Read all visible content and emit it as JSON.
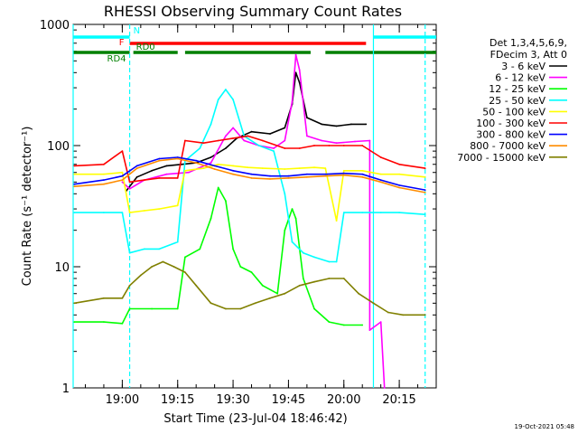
{
  "chart_data": {
    "type": "line",
    "title": "RHESSI Observing Summary Count Rates",
    "xlabel": "Start Time (23-Jul-04 18:46:42)",
    "ylabel": "Count Rate (s⁻¹ detector⁻¹)",
    "y_scale": "log",
    "ylim": [
      1,
      1000
    ],
    "xlim": [
      "18:46:42",
      "20:25:00"
    ],
    "x_ticks": [
      "19:00",
      "19:15",
      "19:30",
      "19:45",
      "20:00",
      "20:15"
    ],
    "y_ticks": [
      "1",
      "10",
      "100",
      "1000"
    ],
    "grid": false,
    "legend": {
      "placement": "right",
      "header": [
        "Det 1,3,4,5,6,9,",
        "FDecim 3, Att 0"
      ]
    },
    "series": [
      {
        "name": "3 - 6 keV",
        "color": "#000000",
        "points": [
          [
            "19:01",
            42
          ],
          [
            "19:04",
            55
          ],
          [
            "19:08",
            62
          ],
          [
            "19:12",
            68
          ],
          [
            "19:16",
            70
          ],
          [
            "19:20",
            72
          ],
          [
            "19:24",
            80
          ],
          [
            "19:28",
            95
          ],
          [
            "19:31",
            115
          ],
          [
            "19:35",
            130
          ],
          [
            "19:40",
            125
          ],
          [
            "19:44",
            140
          ],
          [
            "19:46",
            220
          ],
          [
            "19:47",
            400
          ],
          [
            "19:48",
            330
          ],
          [
            "19:50",
            170
          ],
          [
            "19:54",
            150
          ],
          [
            "19:58",
            145
          ],
          [
            "20:02",
            150
          ],
          [
            "20:06",
            150
          ]
        ]
      },
      {
        "name": "6 - 12 keV",
        "color": "#ff00ff",
        "points": [
          [
            "19:00",
            50
          ],
          [
            "19:02",
            44
          ],
          [
            "19:06",
            52
          ],
          [
            "19:12",
            58
          ],
          [
            "19:18",
            60
          ],
          [
            "19:24",
            72
          ],
          [
            "19:28",
            120
          ],
          [
            "19:30",
            140
          ],
          [
            "19:33",
            110
          ],
          [
            "19:37",
            100
          ],
          [
            "19:41",
            95
          ],
          [
            "19:44",
            110
          ],
          [
            "19:46",
            230
          ],
          [
            "19:47",
            560
          ],
          [
            "19:48",
            420
          ],
          [
            "19:50",
            120
          ],
          [
            "19:54",
            110
          ],
          [
            "19:58",
            105
          ],
          [
            "20:03",
            108
          ],
          [
            "20:07",
            110
          ],
          [
            "20:07",
            3
          ],
          [
            "20:10",
            3.5
          ],
          [
            "20:11",
            1
          ]
        ]
      },
      {
        "name": "12 - 25 keV",
        "color": "#00ff00",
        "points": [
          [
            "18:47",
            3.5
          ],
          [
            "18:55",
            3.5
          ],
          [
            "19:00",
            3.4
          ],
          [
            "19:02",
            4.5
          ],
          [
            "19:08",
            4.5
          ],
          [
            "19:15",
            4.5
          ],
          [
            "19:17",
            12
          ],
          [
            "19:21",
            14
          ],
          [
            "19:24",
            25
          ],
          [
            "19:26",
            45
          ],
          [
            "19:28",
            35
          ],
          [
            "19:30",
            14
          ],
          [
            "19:32",
            10
          ],
          [
            "19:35",
            9
          ],
          [
            "19:38",
            7
          ],
          [
            "19:42",
            6
          ],
          [
            "19:44",
            20
          ],
          [
            "19:46",
            30
          ],
          [
            "19:47",
            25
          ],
          [
            "19:49",
            8
          ],
          [
            "19:52",
            4.5
          ],
          [
            "19:56",
            3.5
          ],
          [
            "20:00",
            3.3
          ],
          [
            "20:05",
            3.3
          ]
        ]
      },
      {
        "name": "25 - 50 keV",
        "color": "#00ffff",
        "points": [
          [
            "18:47",
            28
          ],
          [
            "18:55",
            28
          ],
          [
            "19:00",
            28
          ],
          [
            "19:02",
            13
          ],
          [
            "19:06",
            14
          ],
          [
            "19:10",
            14
          ],
          [
            "19:15",
            16
          ],
          [
            "19:17",
            75
          ],
          [
            "19:21",
            95
          ],
          [
            "19:24",
            150
          ],
          [
            "19:26",
            240
          ],
          [
            "19:28",
            290
          ],
          [
            "19:30",
            240
          ],
          [
            "19:33",
            120
          ],
          [
            "19:37",
            100
          ],
          [
            "19:41",
            90
          ],
          [
            "19:44",
            40
          ],
          [
            "19:46",
            16
          ],
          [
            "19:49",
            13
          ],
          [
            "19:52",
            12
          ],
          [
            "19:56",
            11
          ],
          [
            "19:58",
            11
          ],
          [
            "20:00",
            28
          ],
          [
            "20:05",
            28
          ],
          [
            "20:10",
            28
          ],
          [
            "20:15",
            28
          ],
          [
            "20:22",
            27
          ]
        ]
      },
      {
        "name": "50 - 100 keV",
        "color": "#ffff00",
        "points": [
          [
            "18:47",
            58
          ],
          [
            "18:55",
            58
          ],
          [
            "19:00",
            60
          ],
          [
            "19:02",
            28
          ],
          [
            "19:06",
            29
          ],
          [
            "19:10",
            30
          ],
          [
            "19:15",
            32
          ],
          [
            "19:17",
            62
          ],
          [
            "19:22",
            65
          ],
          [
            "19:26",
            70
          ],
          [
            "19:30",
            68
          ],
          [
            "19:34",
            66
          ],
          [
            "19:38",
            65
          ],
          [
            "19:44",
            64
          ],
          [
            "19:48",
            65
          ],
          [
            "19:52",
            66
          ],
          [
            "19:55",
            65
          ],
          [
            "19:58",
            24
          ],
          [
            "20:00",
            62
          ],
          [
            "20:05",
            62
          ],
          [
            "20:10",
            58
          ],
          [
            "20:15",
            58
          ],
          [
            "20:22",
            55
          ]
        ]
      },
      {
        "name": "100 - 300 keV",
        "color": "#ff0000",
        "points": [
          [
            "18:47",
            68
          ],
          [
            "18:55",
            70
          ],
          [
            "19:00",
            90
          ],
          [
            "19:02",
            50
          ],
          [
            "19:06",
            52
          ],
          [
            "19:10",
            54
          ],
          [
            "19:15",
            54
          ],
          [
            "19:17",
            110
          ],
          [
            "19:22",
            105
          ],
          [
            "19:26",
            110
          ],
          [
            "19:30",
            115
          ],
          [
            "19:34",
            120
          ],
          [
            "19:38",
            110
          ],
          [
            "19:44",
            95
          ],
          [
            "19:48",
            95
          ],
          [
            "19:52",
            100
          ],
          [
            "19:56",
            100
          ],
          [
            "20:00",
            100
          ],
          [
            "20:05",
            100
          ],
          [
            "20:10",
            80
          ],
          [
            "20:15",
            70
          ],
          [
            "20:22",
            65
          ]
        ]
      },
      {
        "name": "300 - 800 keV",
        "color": "#0000ff",
        "points": [
          [
            "18:47",
            48
          ],
          [
            "18:55",
            52
          ],
          [
            "19:00",
            56
          ],
          [
            "19:04",
            68
          ],
          [
            "19:10",
            78
          ],
          [
            "19:15",
            80
          ],
          [
            "19:20",
            75
          ],
          [
            "19:25",
            68
          ],
          [
            "19:30",
            62
          ],
          [
            "19:35",
            58
          ],
          [
            "19:40",
            56
          ],
          [
            "19:45",
            56
          ],
          [
            "19:50",
            58
          ],
          [
            "19:55",
            58
          ],
          [
            "20:00",
            59
          ],
          [
            "20:05",
            58
          ],
          [
            "20:10",
            52
          ],
          [
            "20:15",
            47
          ],
          [
            "20:22",
            43
          ]
        ]
      },
      {
        "name": "800 - 7000 keV",
        "color": "#ff8c00",
        "points": [
          [
            "18:47",
            46
          ],
          [
            "18:55",
            48
          ],
          [
            "19:00",
            52
          ],
          [
            "19:04",
            65
          ],
          [
            "19:10",
            75
          ],
          [
            "19:15",
            78
          ],
          [
            "19:20",
            72
          ],
          [
            "19:25",
            64
          ],
          [
            "19:30",
            58
          ],
          [
            "19:35",
            54
          ],
          [
            "19:40",
            53
          ],
          [
            "19:45",
            54
          ],
          [
            "19:50",
            55
          ],
          [
            "19:55",
            56
          ],
          [
            "20:00",
            57
          ],
          [
            "20:05",
            55
          ],
          [
            "20:10",
            50
          ],
          [
            "20:15",
            45
          ],
          [
            "20:22",
            41
          ]
        ]
      },
      {
        "name": "7000 - 15000 keV",
        "color": "#808000",
        "points": [
          [
            "18:47",
            5
          ],
          [
            "18:55",
            5.5
          ],
          [
            "19:00",
            5.5
          ],
          [
            "19:02",
            7
          ],
          [
            "19:05",
            8.5
          ],
          [
            "19:08",
            10
          ],
          [
            "19:11",
            11
          ],
          [
            "19:14",
            10
          ],
          [
            "19:17",
            9
          ],
          [
            "19:20",
            7
          ],
          [
            "19:24",
            5
          ],
          [
            "19:28",
            4.5
          ],
          [
            "19:32",
            4.5
          ],
          [
            "19:36",
            5
          ],
          [
            "19:40",
            5.5
          ],
          [
            "19:44",
            6
          ],
          [
            "19:48",
            7
          ],
          [
            "19:52",
            7.5
          ],
          [
            "19:56",
            8
          ],
          [
            "20:00",
            8
          ],
          [
            "20:04",
            6
          ],
          [
            "20:08",
            5
          ],
          [
            "20:12",
            4.2
          ],
          [
            "20:16",
            4
          ],
          [
            "20:22",
            4
          ]
        ]
      }
    ],
    "state_bars": [
      {
        "label": "N",
        "color": "#00ffff",
        "segments": [
          [
            "18:46:42",
            "19:02"
          ],
          [
            "20:08",
            "20:25"
          ]
        ]
      },
      {
        "label": "F",
        "color": "#ff0000",
        "segments": [
          [
            "19:02",
            "20:06"
          ]
        ]
      },
      {
        "label": "RD0",
        "color": "#008000",
        "segments": [
          [
            "19:03",
            "19:15"
          ],
          [
            "19:17",
            "19:51"
          ],
          [
            "19:55",
            "20:25"
          ]
        ]
      },
      {
        "label": "RD4",
        "color": "#008000",
        "segments": [
          [
            "18:46:42",
            "19:02"
          ]
        ]
      }
    ],
    "markers": [
      {
        "time": "18:46:42",
        "color": "#00ffff",
        "style": "solid"
      },
      {
        "time": "19:02",
        "color": "#00ffff",
        "style": "dashed"
      },
      {
        "time": "20:08",
        "color": "#00ffff",
        "style": "solid"
      },
      {
        "time": "20:22",
        "color": "#00ffff",
        "style": "dashed"
      }
    ]
  },
  "footer": {
    "timestamp": "19-Oct-2021 05:48"
  }
}
